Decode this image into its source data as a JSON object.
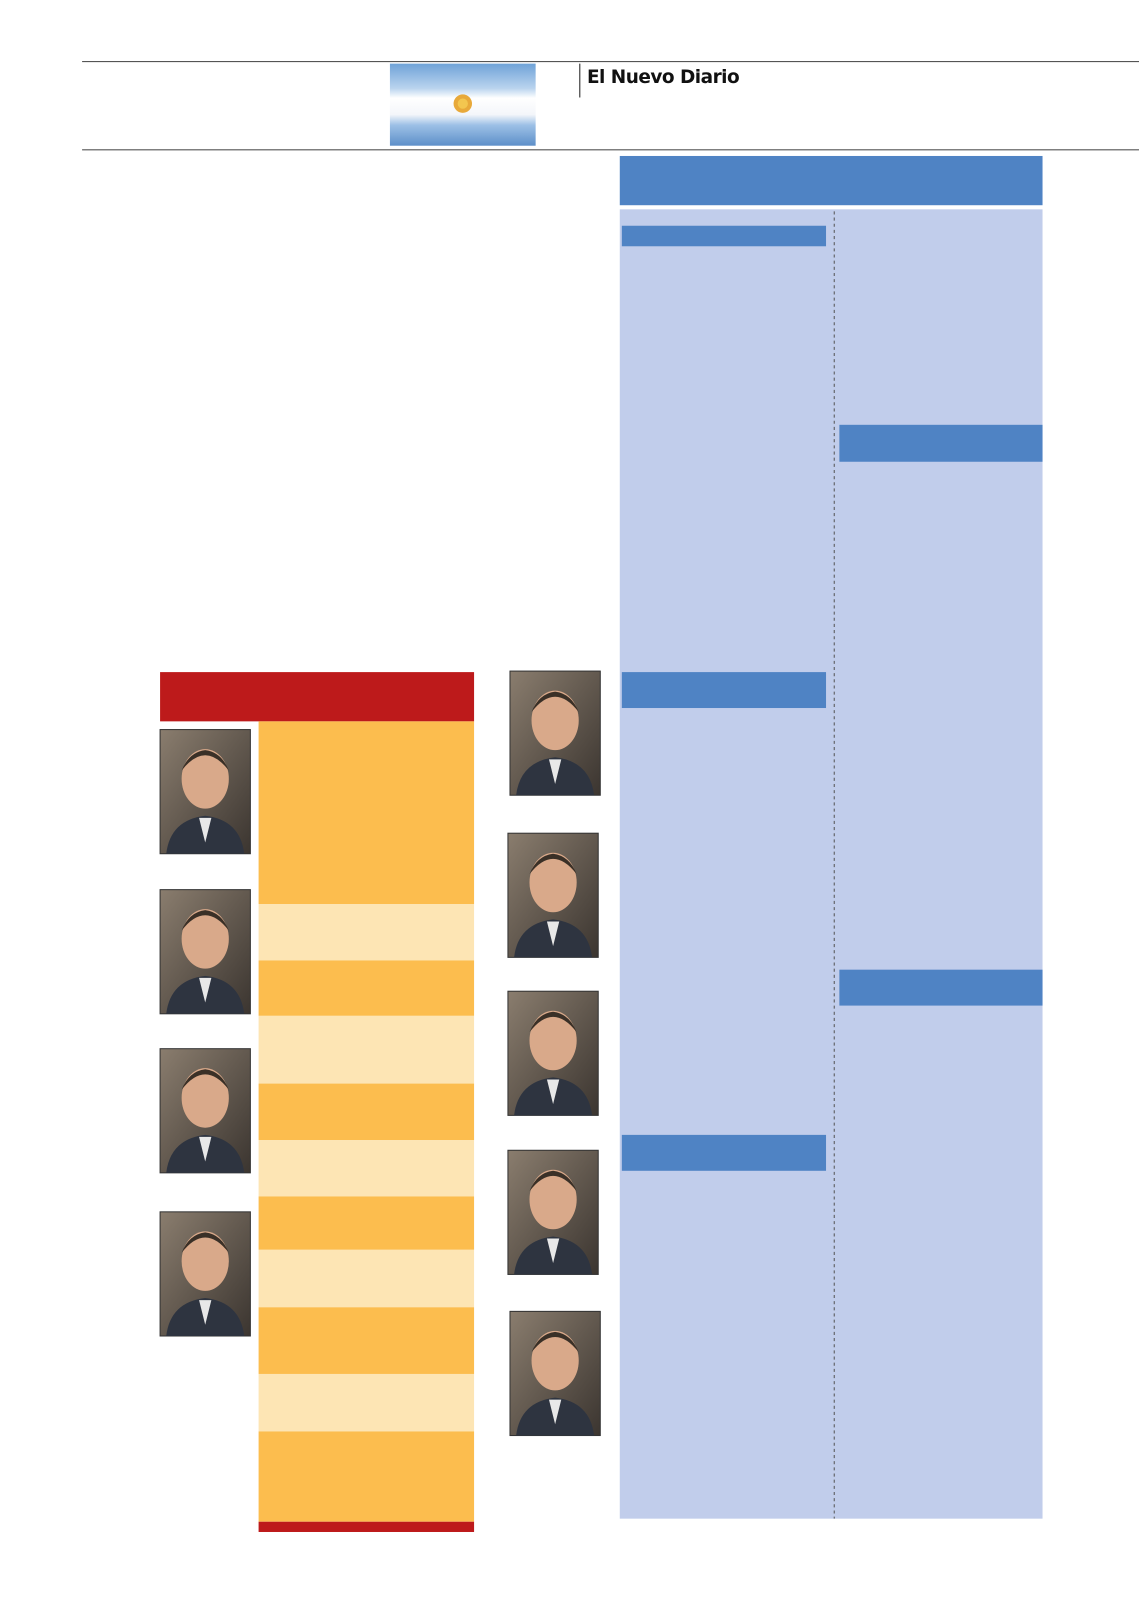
{
  "header": {
    "masthead": "El Nuevo Diario"
  }
}
